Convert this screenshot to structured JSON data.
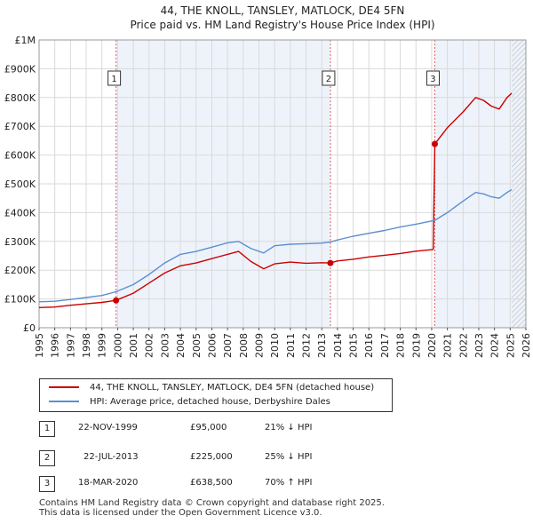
{
  "chart_data": {
    "type": "line",
    "title": "44, THE KNOLL, TANSLEY, MATLOCK, DE4 5FN",
    "subtitle": "Price paid vs. HM Land Registry's House Price Index (HPI)",
    "xlim": [
      1995,
      2026
    ],
    "ylim": [
      0,
      1000000
    ],
    "x_ticks": [
      "1995",
      "1996",
      "1997",
      "1998",
      "1999",
      "2000",
      "2001",
      "2002",
      "2003",
      "2004",
      "2005",
      "2006",
      "2007",
      "2008",
      "2009",
      "2010",
      "2011",
      "2012",
      "2013",
      "2014",
      "2015",
      "2016",
      "2017",
      "2018",
      "2019",
      "2020",
      "2021",
      "2022",
      "2023",
      "2024",
      "2025",
      "2026"
    ],
    "y_ticks": [
      {
        "value": 0,
        "label": "£0"
      },
      {
        "value": 100000,
        "label": "£100K"
      },
      {
        "value": 200000,
        "label": "£200K"
      },
      {
        "value": 300000,
        "label": "£300K"
      },
      {
        "value": 400000,
        "label": "£400K"
      },
      {
        "value": 500000,
        "label": "£500K"
      },
      {
        "value": 600000,
        "label": "£600K"
      },
      {
        "value": 700000,
        "label": "£700K"
      },
      {
        "value": 800000,
        "label": "£800K"
      },
      {
        "value": 900000,
        "label": "£900K"
      },
      {
        "value": 1000000,
        "label": "£1M"
      }
    ],
    "grid": true,
    "background": "#eef3fb",
    "shaded_spans": [
      {
        "from": 1999.9,
        "to": 2013.55
      },
      {
        "from": 2020.2,
        "to": 2026
      }
    ],
    "hatched_from": 2025.1,
    "series": [
      {
        "name": "44, THE KNOLL, TANSLEY, MATLOCK, DE4 5FN (detached house)",
        "color": "#cc0000",
        "x": [
          1995,
          1996,
          1997,
          1998,
          1999,
          1999.9,
          2001,
          2002,
          2003,
          2004,
          2005,
          2006,
          2007,
          2007.7,
          2008.5,
          2009.3,
          2010,
          2011,
          2012,
          2013,
          2013.55,
          2014,
          2015,
          2016,
          2017,
          2018,
          2019,
          2020.1,
          2020.2,
          2020.5,
          2021,
          2022,
          2022.8,
          2023.3,
          2023.8,
          2024.3,
          2024.8,
          2025.1
        ],
        "y": [
          70000,
          72000,
          78000,
          83000,
          88000,
          95000,
          120000,
          155000,
          190000,
          215000,
          225000,
          240000,
          255000,
          265000,
          230000,
          205000,
          222000,
          228000,
          224000,
          226000,
          225000,
          232000,
          238000,
          246000,
          252000,
          258000,
          266000,
          272000,
          638500,
          660000,
          695000,
          750000,
          800000,
          790000,
          770000,
          760000,
          800000,
          815000
        ]
      },
      {
        "name": "HPI: Average price, detached house, Derbyshire Dales",
        "color": "#5b8fd0",
        "x": [
          1995,
          1996,
          1997,
          1998,
          1999,
          1999.9,
          2001,
          2002,
          2003,
          2004,
          2005,
          2006,
          2007,
          2007.7,
          2008.5,
          2009.3,
          2010,
          2011,
          2012,
          2013,
          2013.55,
          2014,
          2015,
          2016,
          2017,
          2018,
          2019,
          2020.2,
          2021,
          2022,
          2022.8,
          2023.3,
          2023.8,
          2024.3,
          2024.8,
          2025.1
        ],
        "y": [
          90000,
          92000,
          98000,
          105000,
          112000,
          125000,
          150000,
          185000,
          225000,
          255000,
          265000,
          280000,
          295000,
          300000,
          275000,
          260000,
          285000,
          290000,
          292000,
          294000,
          298000,
          305000,
          318000,
          328000,
          338000,
          350000,
          360000,
          373000,
          400000,
          440000,
          470000,
          465000,
          455000,
          450000,
          470000,
          480000
        ]
      }
    ],
    "annotations": [
      {
        "label": "1",
        "x": 1999.9,
        "y": 95000
      },
      {
        "label": "2",
        "x": 2013.55,
        "y": 225000
      },
      {
        "label": "3",
        "x": 2020.2,
        "y": 638500
      }
    ]
  },
  "legend": {
    "red_label": "44, THE KNOLL, TANSLEY, MATLOCK, DE4 5FN (detached house)",
    "blue_label": "HPI: Average price, detached house, Derbyshire Dales"
  },
  "transactions": [
    {
      "num": "1",
      "date": "22-NOV-1999",
      "price": "£95,000",
      "hpi": "21% ↓ HPI"
    },
    {
      "num": "2",
      "date": "22-JUL-2013",
      "price": "£225,000",
      "hpi": "25% ↓ HPI"
    },
    {
      "num": "3",
      "date": "18-MAR-2020",
      "price": "£638,500",
      "hpi": "70% ↑ HPI"
    }
  ],
  "footer": {
    "line1": "Contains HM Land Registry data © Crown copyright and database right 2025.",
    "line2": "This data is licensed under the Open Government Licence v3.0."
  }
}
